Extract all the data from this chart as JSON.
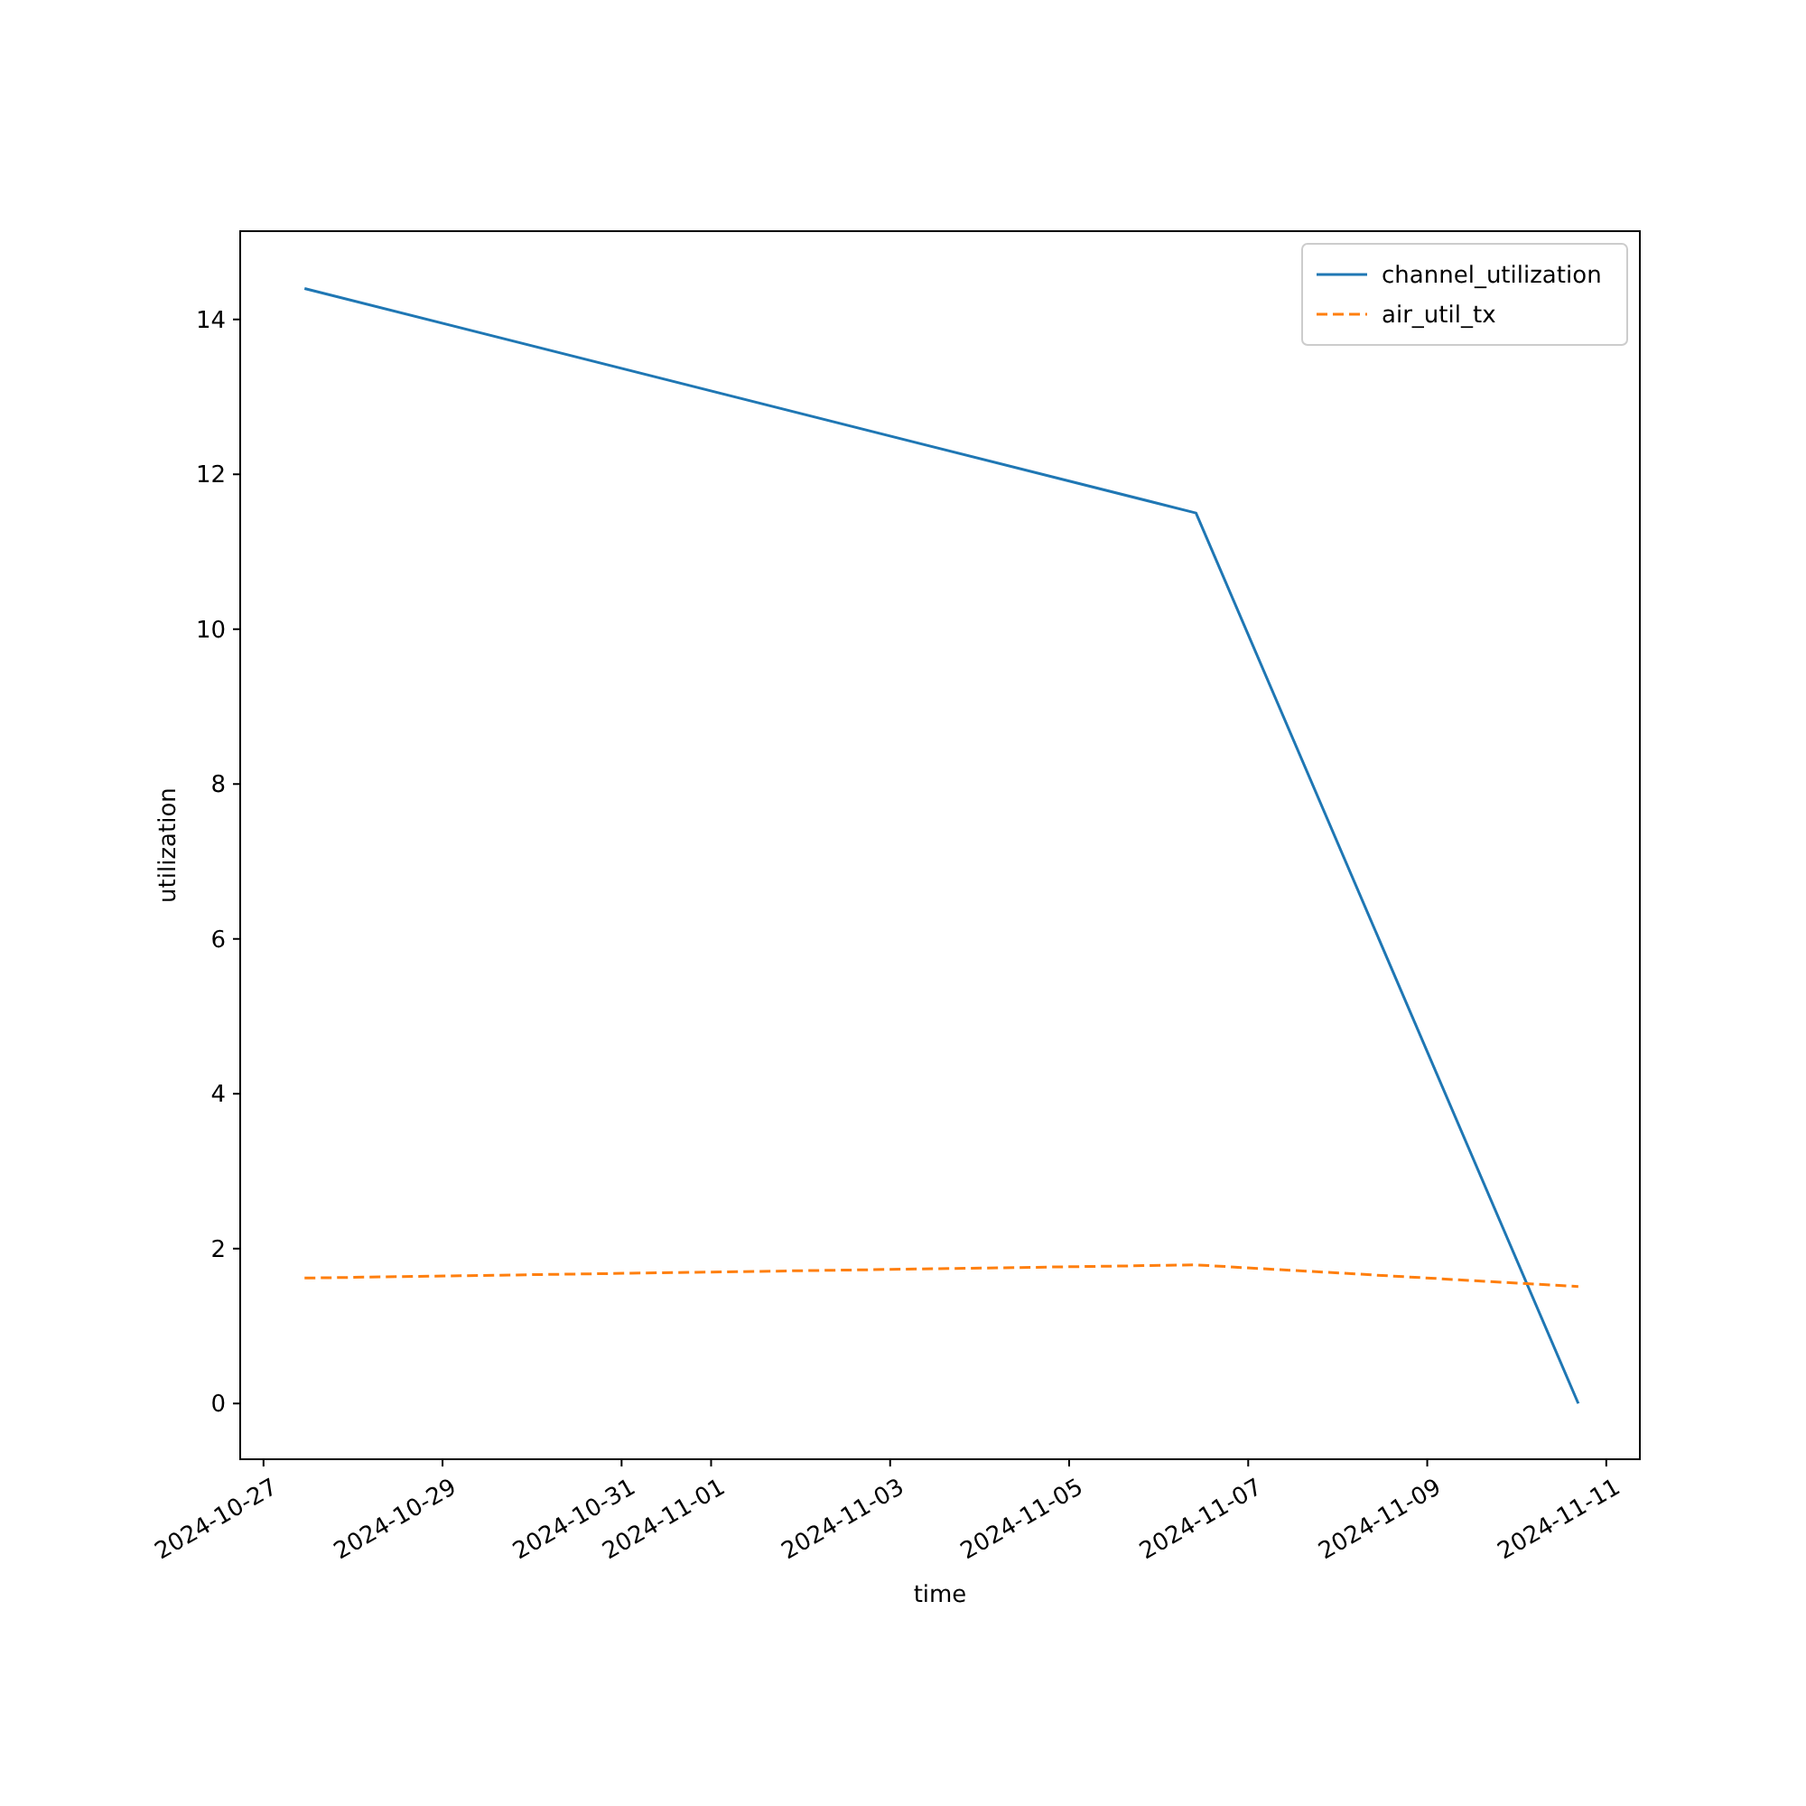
{
  "chart_data": {
    "type": "line",
    "xlabel": "time",
    "ylabel": "utilization",
    "x": [
      "2024-10-27T11:00",
      "2024-11-06T10:00",
      "2024-11-10T16:30"
    ],
    "series": [
      {
        "name": "channel_utilization",
        "color": "#1f77b4",
        "values": [
          14.4,
          11.5,
          0
        ],
        "line_style": "solid"
      },
      {
        "name": "air_util_tx",
        "color": "#ff7f0e",
        "values": [
          1.62,
          1.79,
          1.51
        ],
        "line_style": "dashed"
      }
    ],
    "xlim": [
      "2024-10-26T17:45",
      "2024-11-11T09:00"
    ],
    "xticks": [
      {
        "value": "2024-10-27",
        "label": "2024-10-27"
      },
      {
        "value": "2024-10-29",
        "label": "2024-10-29"
      },
      {
        "value": "2024-10-31",
        "label": "2024-10-31"
      },
      {
        "value": "2024-11-01",
        "label": "2024-11-01"
      },
      {
        "value": "2024-11-03",
        "label": "2024-11-03"
      },
      {
        "value": "2024-11-05",
        "label": "2024-11-05"
      },
      {
        "value": "2024-11-07",
        "label": "2024-11-07"
      },
      {
        "value": "2024-11-09",
        "label": "2024-11-09"
      },
      {
        "value": "2024-11-11",
        "label": "2024-11-11"
      }
    ],
    "ylim": [
      -0.72,
      15.14
    ],
    "yticks": [
      0,
      2,
      4,
      6,
      8,
      10,
      12,
      14
    ],
    "legend": "top right",
    "grid": false,
    "marker": "none"
  }
}
